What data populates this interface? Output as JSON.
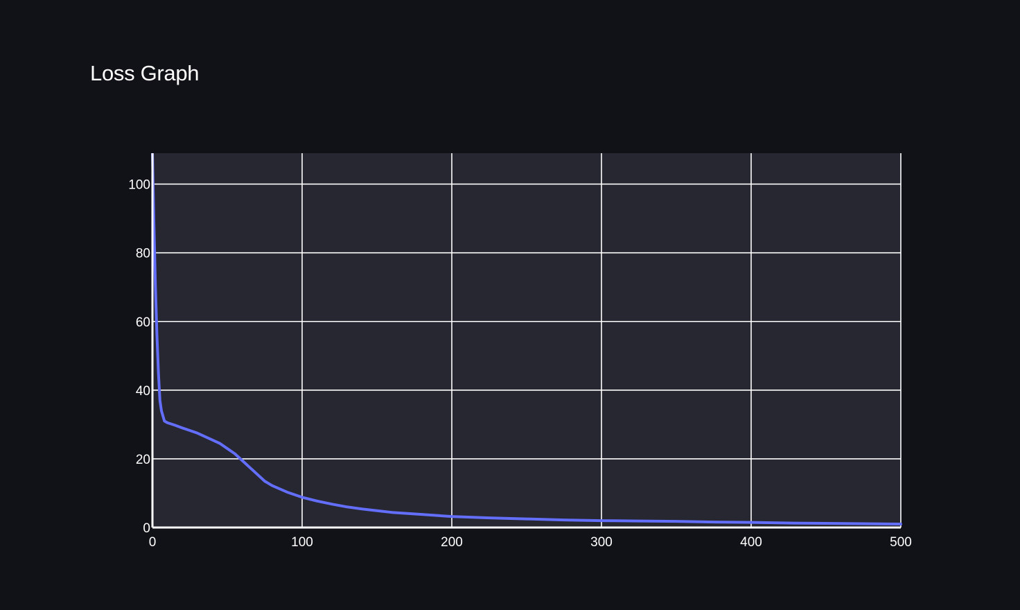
{
  "chart_data": {
    "type": "line",
    "title": "Loss Graph",
    "xlabel": "",
    "ylabel": "",
    "xlim": [
      0,
      500
    ],
    "ylim": [
      0,
      109
    ],
    "x_ticks": [
      0,
      100,
      200,
      300,
      400,
      500
    ],
    "y_ticks": [
      0,
      20,
      40,
      60,
      80,
      100
    ],
    "grid": true,
    "legend": "none",
    "series": [
      {
        "color": "#636efa",
        "x": [
          0,
          1,
          2,
          3,
          4,
          5,
          6,
          8,
          10,
          15,
          20,
          30,
          40,
          45,
          50,
          55,
          60,
          65,
          70,
          75,
          80,
          90,
          100,
          110,
          120,
          130,
          140,
          150,
          160,
          180,
          200,
          225,
          250,
          275,
          300,
          325,
          350,
          375,
          400,
          425,
          450,
          475,
          500
        ],
        "y": [
          109,
          88,
          70,
          56,
          45,
          37,
          34,
          31,
          30.5,
          29.8,
          29,
          27.5,
          25.5,
          24.5,
          23,
          21.5,
          19.5,
          17.5,
          15.5,
          13.5,
          12.2,
          10.3,
          8.8,
          7.7,
          6.8,
          6,
          5.4,
          4.9,
          4.4,
          3.8,
          3.2,
          2.8,
          2.5,
          2.2,
          2,
          1.9,
          1.8,
          1.6,
          1.5,
          1.3,
          1.2,
          1.1,
          1
        ]
      }
    ]
  }
}
